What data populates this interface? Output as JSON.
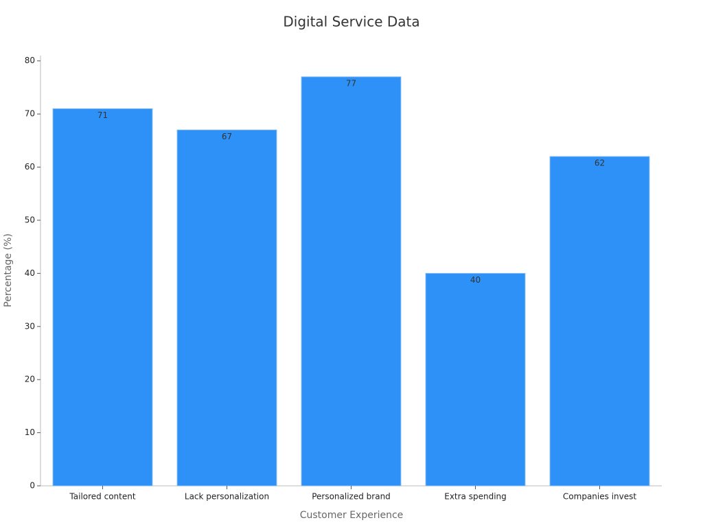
{
  "chart_data": {
    "type": "bar",
    "title": "Digital Service Data",
    "x_label": "Customer Experience",
    "y_label": "Percentage (%)",
    "categories": [
      "Tailored content",
      "Lack personalization",
      "Personalized brand",
      "Extra spending",
      "Companies invest"
    ],
    "values": [
      71,
      67,
      77,
      40,
      62
    ],
    "color": "#2e91f8",
    "ylim": [
      0,
      81
    ],
    "yticks": [
      0,
      10,
      20,
      30,
      40,
      50,
      60,
      70,
      80
    ],
    "grid": false
  }
}
